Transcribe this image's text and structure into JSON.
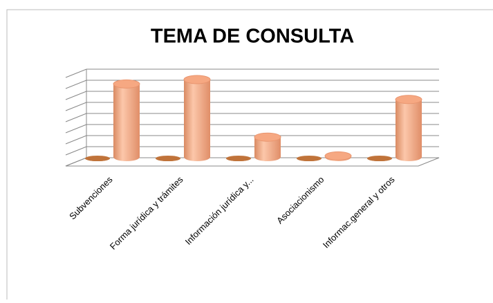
{
  "chart_data": {
    "type": "bar3d",
    "title": "TEMA DE CONSULTA",
    "categories": [
      "Subvenciones",
      "Forma jurídica y trámites",
      "Información jurídica y...",
      "Asociacionismo",
      "Informac.general y otros"
    ],
    "series": [
      {
        "color": "#c0733a",
        "values": [
          0,
          0,
          0,
          0,
          0
        ]
      },
      {
        "color": "#f6a882",
        "values": [
          6.6,
          7.0,
          1.8,
          0.1,
          5.2
        ]
      }
    ],
    "ylim": [
      0,
      8
    ],
    "yticks": [
      0,
      1,
      2,
      3,
      4,
      5,
      6,
      7,
      8
    ],
    "grid": true
  }
}
